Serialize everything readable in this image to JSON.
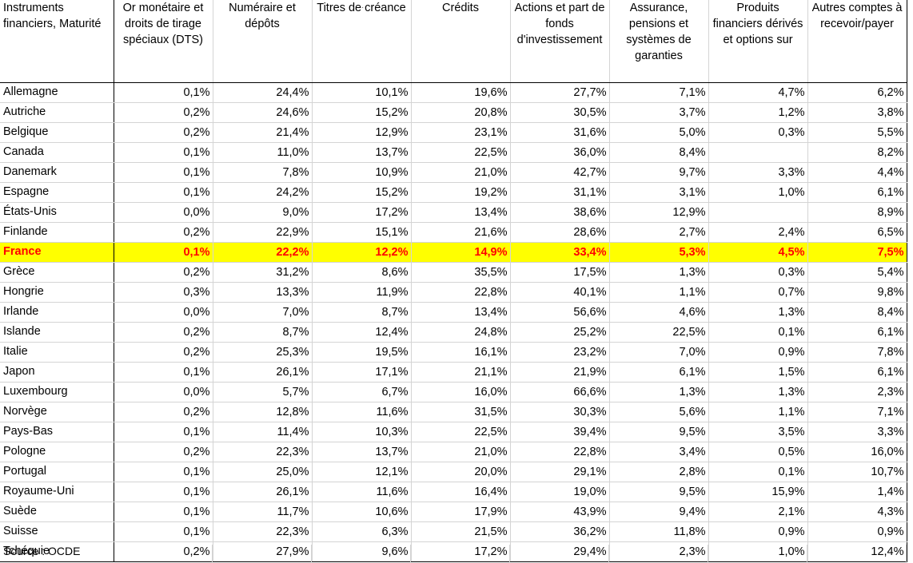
{
  "headers": [
    "Instruments financiers, Maturité",
    "Or monétaire et droits de tirage spéciaux (DTS)",
    "Numéraire et dépôts",
    "Titres de créance",
    "Crédits",
    "Actions et part de fonds d'investissement",
    "Assurance, pensions et systèmes de garanties",
    "Produits financiers dérivés et options sur",
    "Autres comptes à recevoir/payer"
  ],
  "rows": [
    {
      "country": "Allemagne",
      "values": [
        "0,1%",
        "24,4%",
        "10,1%",
        "19,6%",
        "27,7%",
        "7,1%",
        "4,7%",
        "6,2%"
      ]
    },
    {
      "country": "Autriche",
      "values": [
        "0,2%",
        "24,6%",
        "15,2%",
        "20,8%",
        "30,5%",
        "3,7%",
        "1,2%",
        "3,8%"
      ]
    },
    {
      "country": "Belgique",
      "values": [
        "0,2%",
        "21,4%",
        "12,9%",
        "23,1%",
        "31,6%",
        "5,0%",
        "0,3%",
        "5,5%"
      ]
    },
    {
      "country": "Canada",
      "values": [
        "0,1%",
        "11,0%",
        "13,7%",
        "22,5%",
        "36,0%",
        "8,4%",
        "",
        "8,2%"
      ]
    },
    {
      "country": "Danemark",
      "values": [
        "0,1%",
        "7,8%",
        "10,9%",
        "21,0%",
        "42,7%",
        "9,7%",
        "3,3%",
        "4,4%"
      ]
    },
    {
      "country": "Espagne",
      "values": [
        "0,1%",
        "24,2%",
        "15,2%",
        "19,2%",
        "31,1%",
        "3,1%",
        "1,0%",
        "6,1%"
      ]
    },
    {
      "country": "États-Unis",
      "values": [
        "0,0%",
        "9,0%",
        "17,2%",
        "13,4%",
        "38,6%",
        "12,9%",
        "",
        "8,9%"
      ]
    },
    {
      "country": "Finlande",
      "values": [
        "0,2%",
        "22,9%",
        "15,1%",
        "21,6%",
        "28,6%",
        "2,7%",
        "2,4%",
        "6,5%"
      ]
    },
    {
      "country": "France",
      "values": [
        "0,1%",
        "22,2%",
        "12,2%",
        "14,9%",
        "33,4%",
        "5,3%",
        "4,5%",
        "7,5%"
      ],
      "highlight": true
    },
    {
      "country": "Grèce",
      "values": [
        "0,2%",
        "31,2%",
        "8,6%",
        "35,5%",
        "17,5%",
        "1,3%",
        "0,3%",
        "5,4%"
      ]
    },
    {
      "country": "Hongrie",
      "values": [
        "0,3%",
        "13,3%",
        "11,9%",
        "22,8%",
        "40,1%",
        "1,1%",
        "0,7%",
        "9,8%"
      ]
    },
    {
      "country": "Irlande",
      "values": [
        "0,0%",
        "7,0%",
        "8,7%",
        "13,4%",
        "56,6%",
        "4,6%",
        "1,3%",
        "8,4%"
      ]
    },
    {
      "country": "Islande",
      "values": [
        "0,2%",
        "8,7%",
        "12,4%",
        "24,8%",
        "25,2%",
        "22,5%",
        "0,1%",
        "6,1%"
      ]
    },
    {
      "country": "Italie",
      "values": [
        "0,2%",
        "25,3%",
        "19,5%",
        "16,1%",
        "23,2%",
        "7,0%",
        "0,9%",
        "7,8%"
      ]
    },
    {
      "country": "Japon",
      "values": [
        "0,1%",
        "26,1%",
        "17,1%",
        "21,1%",
        "21,9%",
        "6,1%",
        "1,5%",
        "6,1%"
      ]
    },
    {
      "country": "Luxembourg",
      "values": [
        "0,0%",
        "5,7%",
        "6,7%",
        "16,0%",
        "66,6%",
        "1,3%",
        "1,3%",
        "2,3%"
      ]
    },
    {
      "country": "Norvège",
      "values": [
        "0,2%",
        "12,8%",
        "11,6%",
        "31,5%",
        "30,3%",
        "5,6%",
        "1,1%",
        "7,1%"
      ]
    },
    {
      "country": "Pays-Bas",
      "values": [
        "0,1%",
        "11,4%",
        "10,3%",
        "22,5%",
        "39,4%",
        "9,5%",
        "3,5%",
        "3,3%"
      ]
    },
    {
      "country": "Pologne",
      "values": [
        "0,2%",
        "22,3%",
        "13,7%",
        "21,0%",
        "22,8%",
        "3,4%",
        "0,5%",
        "16,0%"
      ]
    },
    {
      "country": "Portugal",
      "values": [
        "0,1%",
        "25,0%",
        "12,1%",
        "20,0%",
        "29,1%",
        "2,8%",
        "0,1%",
        "10,7%"
      ]
    },
    {
      "country": "Royaume-Uni",
      "values": [
        "0,1%",
        "26,1%",
        "11,6%",
        "16,4%",
        "19,0%",
        "9,5%",
        "15,9%",
        "1,4%"
      ]
    },
    {
      "country": "Suède",
      "values": [
        "0,1%",
        "11,7%",
        "10,6%",
        "17,9%",
        "43,9%",
        "9,4%",
        "2,1%",
        "4,3%"
      ]
    },
    {
      "country": "Suisse",
      "values": [
        "0,1%",
        "22,3%",
        "6,3%",
        "21,5%",
        "36,2%",
        "11,8%",
        "0,9%",
        "0,9%"
      ]
    },
    {
      "country": "Tchéquie",
      "values": [
        "0,2%",
        "27,9%",
        "9,6%",
        "17,2%",
        "29,4%",
        "2,3%",
        "1,0%",
        "12,4%"
      ]
    }
  ],
  "source": "Source : OCDE",
  "colors": {
    "highlight_bg": "#ffff00",
    "highlight_text": "#ff0000"
  }
}
